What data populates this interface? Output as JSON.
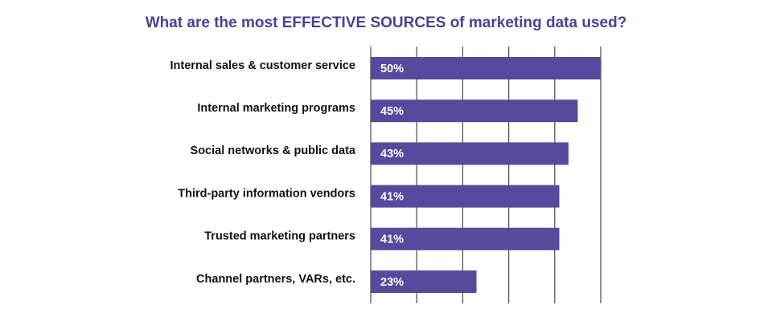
{
  "chart_data": {
    "type": "bar",
    "orientation": "horizontal",
    "title": "What are the most EFFECTIVE SOURCES of marketing data used?",
    "categories": [
      "Internal sales & customer service",
      "Internal marketing programs",
      "Social networks & public data",
      "Third-party information vendors",
      "Trusted marketing partners",
      "Channel partners, VARs, etc."
    ],
    "values": [
      50,
      45,
      43,
      41,
      41,
      23
    ],
    "value_labels": [
      "50%",
      "45%",
      "43%",
      "41%",
      "41%",
      "23%"
    ],
    "xlim": [
      0,
      50
    ],
    "grid": true,
    "legend": "none"
  },
  "colors": {
    "title": "#4b3f94",
    "bar": "#574a9e",
    "grid": "#555555"
  }
}
